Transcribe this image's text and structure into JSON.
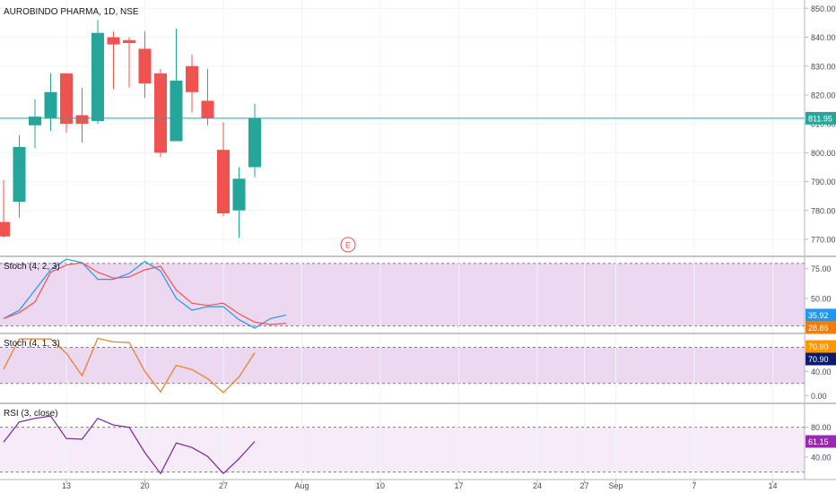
{
  "chart_data": [
    {
      "type": "candlestick",
      "pane": "price",
      "title": "AUROBINDO PHARMA, 1D, NSE",
      "price_label": "811.95",
      "earnings_marker": "E",
      "y_ticks": [
        770,
        780,
        790,
        800,
        810,
        820,
        830,
        840,
        850
      ],
      "y_tick_labels": [
        "770.00",
        "780.00",
        "790.00",
        "800.00",
        "810.00",
        "820.00",
        "830.00",
        "840.00",
        "850.00"
      ],
      "ylim": [
        764.1,
        852.9
      ],
      "x_ticks": [
        {
          "label": "13",
          "idx": 4
        },
        {
          "label": "20",
          "idx": 9
        },
        {
          "label": "27",
          "idx": 14
        },
        {
          "label": "Aug",
          "idx": 19
        },
        {
          "label": "10",
          "idx": 24
        },
        {
          "label": "17",
          "idx": 29
        },
        {
          "label": "24",
          "idx": 34
        },
        {
          "label": "27",
          "idx": 37
        },
        {
          "label": "Sep",
          "idx": 39
        },
        {
          "label": "7",
          "idx": 44
        },
        {
          "label": "14",
          "idx": 49
        }
      ],
      "candles": [
        {
          "o": 776,
          "h": 790.5,
          "l": 770.5,
          "c": 771
        },
        {
          "o": 783,
          "h": 806,
          "l": 777.5,
          "c": 802
        },
        {
          "o": 809.5,
          "h": 818.5,
          "l": 801.5,
          "c": 812.5
        },
        {
          "o": 812,
          "h": 827.5,
          "l": 807.5,
          "c": 821
        },
        {
          "o": 827.5,
          "h": 827.5,
          "l": 807,
          "c": 810
        },
        {
          "o": 813,
          "h": 822.5,
          "l": 803.5,
          "c": 810
        },
        {
          "o": 811,
          "h": 846,
          "l": 810,
          "c": 841.5
        },
        {
          "o": 840,
          "h": 842,
          "l": 822,
          "c": 837.5
        },
        {
          "o": 839,
          "h": 840,
          "l": 822.5,
          "c": 838
        },
        {
          "o": 836,
          "h": 842,
          "l": 819,
          "c": 824
        },
        {
          "o": 827.5,
          "h": 829,
          "l": 798.5,
          "c": 800
        },
        {
          "o": 804,
          "h": 843,
          "l": 804,
          "c": 825
        },
        {
          "o": 830,
          "h": 834,
          "l": 814,
          "c": 821
        },
        {
          "o": 818,
          "h": 829,
          "l": 809.5,
          "c": 812
        },
        {
          "o": 801,
          "h": 810.5,
          "l": 778,
          "c": 779
        },
        {
          "o": 780,
          "h": 795,
          "l": 770.5,
          "c": 791
        },
        {
          "o": 795,
          "h": 817,
          "l": 791.5,
          "c": 811.95
        }
      ]
    },
    {
      "type": "line",
      "pane": "stoch1",
      "title": "Stoch (4, 2, 3)",
      "y_ticks": [
        50,
        75
      ],
      "y_tick_labels": [
        "50.00",
        "75.00"
      ],
      "ylim": [
        20.5,
        85.3
      ],
      "band": [
        26.8,
        79.4
      ],
      "value_labels": [
        {
          "text": "35.92",
          "color": "#2196f3"
        },
        {
          "text": "28.86",
          "color": "#f57c00"
        }
      ],
      "series": [
        {
          "color": "#2196f3",
          "values": [
            33,
            40,
            57,
            74,
            83,
            80,
            66,
            66,
            71,
            81,
            73,
            50,
            40,
            43,
            43,
            32,
            25,
            33,
            36
          ]
        },
        {
          "color": "#ef5350",
          "values": [
            33,
            38,
            47,
            72,
            78,
            80,
            72,
            67,
            68,
            74,
            77,
            57,
            46,
            44,
            46,
            37,
            30,
            28,
            29
          ]
        }
      ]
    },
    {
      "type": "line",
      "pane": "stoch2",
      "title": "Stoch (4, 1, 3)",
      "y_ticks": [
        0,
        40
      ],
      "y_tick_labels": [
        "0.00",
        "40.00"
      ],
      "ylim": [
        -13,
        103
      ],
      "band": [
        20,
        80
      ],
      "value_labels": [
        {
          "text": "70.90",
          "color": "#ff9800"
        },
        {
          "text": "70.90",
          "color": "#0d1b6e"
        }
      ],
      "series": [
        {
          "color": "#e67e22",
          "values": [
            44,
            94,
            94,
            94,
            70,
            33,
            95,
            89,
            88,
            40,
            6,
            50,
            43,
            28,
            5,
            31,
            71
          ]
        }
      ]
    },
    {
      "type": "line",
      "pane": "rsi",
      "title": "RSI (3, close)",
      "y_ticks": [
        40,
        80
      ],
      "y_tick_labels": [
        "40.00",
        "80.00"
      ],
      "ylim": [
        10,
        112
      ],
      "band": [
        20,
        80
      ],
      "value_labels": [
        {
          "text": "61.15",
          "color": "#9c27b0"
        }
      ],
      "series": [
        {
          "color": "#7b1fa2",
          "values": [
            60,
            87,
            92,
            95,
            65,
            64,
            92,
            83,
            80,
            46,
            18,
            59,
            53,
            41,
            18,
            38,
            61
          ]
        }
      ]
    }
  ]
}
